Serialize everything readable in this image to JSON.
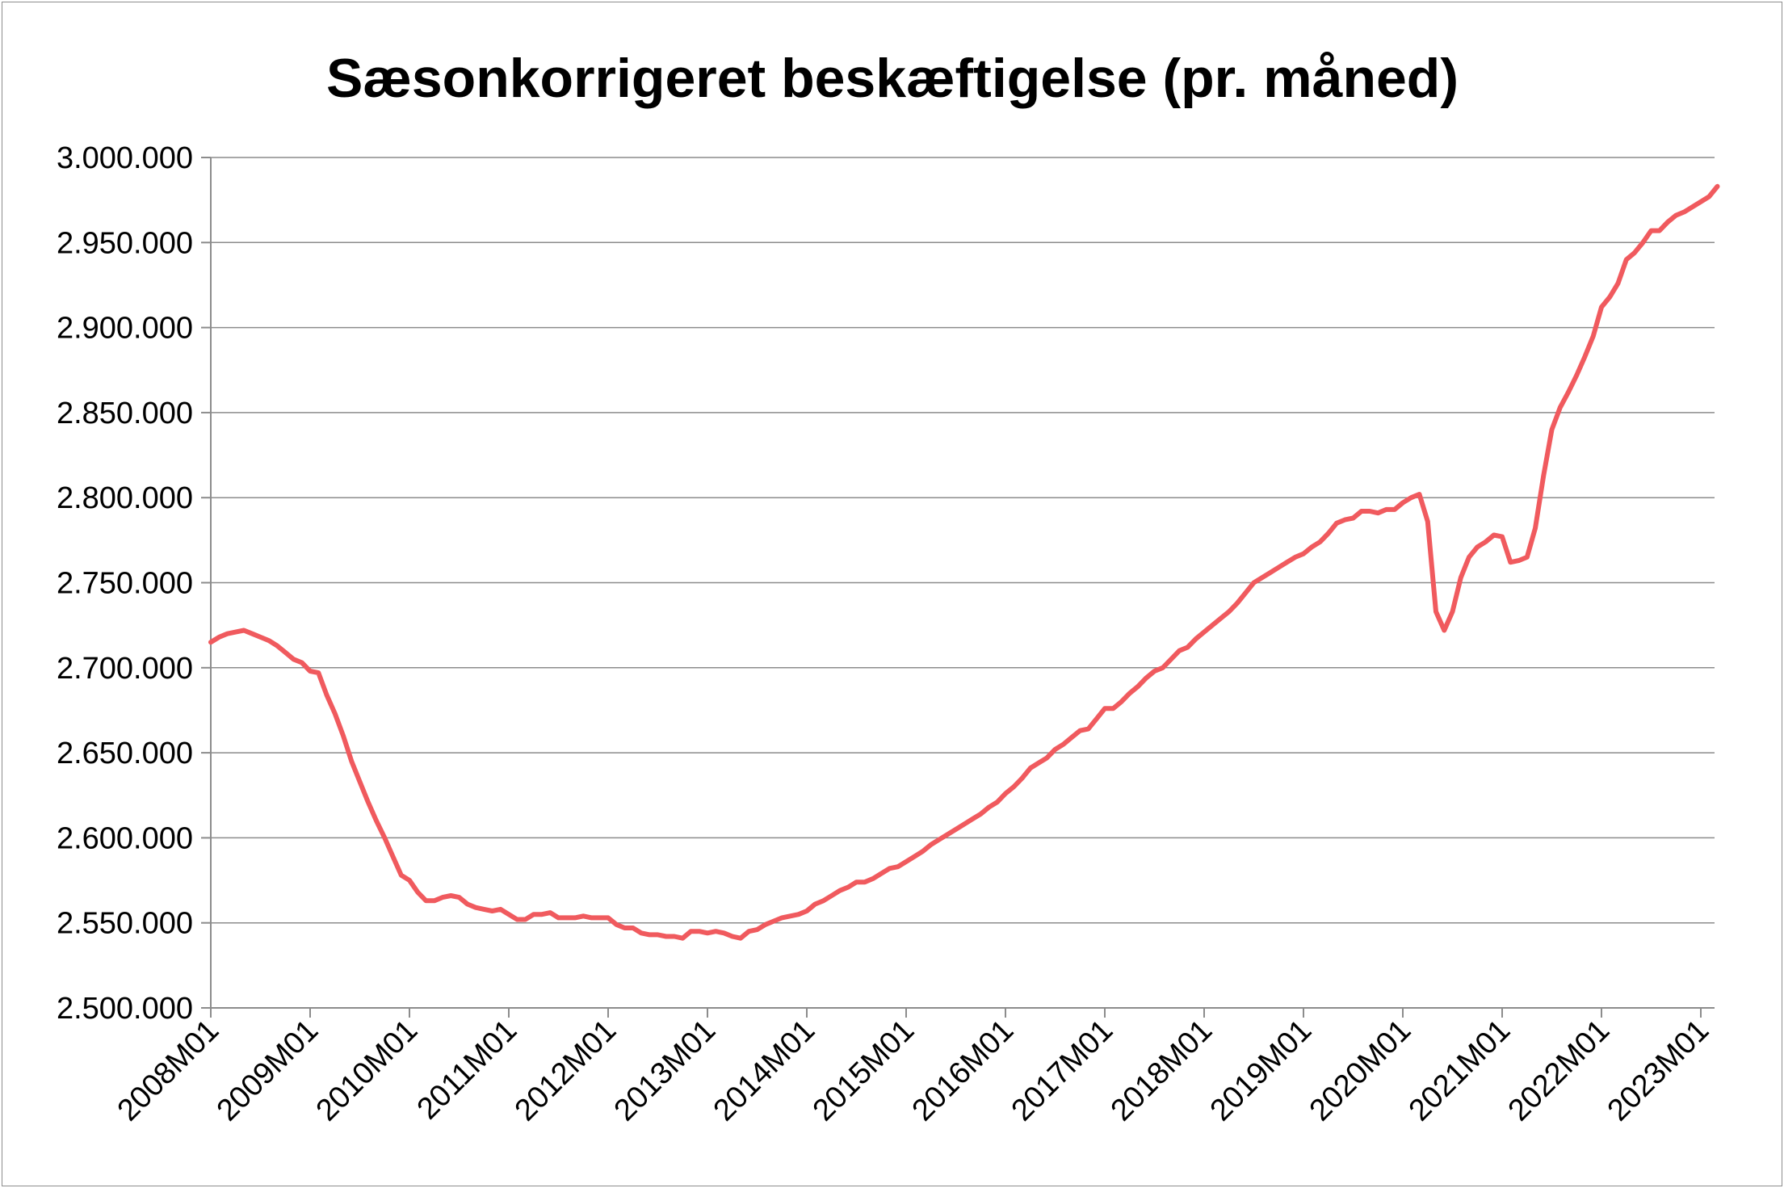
{
  "chart_data": {
    "type": "line",
    "title": "Sæsonkorrigeret beskæftigelse (pr. måned)",
    "xlabel": "",
    "ylabel": "",
    "ylim": [
      2500000,
      3000000
    ],
    "y_ticks": [
      2500000,
      2550000,
      2600000,
      2650000,
      2700000,
      2750000,
      2800000,
      2850000,
      2900000,
      2950000,
      3000000
    ],
    "y_tick_labels": [
      "2.500.000",
      "2.550.000",
      "2.600.000",
      "2.650.000",
      "2.700.000",
      "2.750.000",
      "2.800.000",
      "2.850.000",
      "2.900.000",
      "2.950.000",
      "3.000.000"
    ],
    "x_tick_labels": [
      "2008M01",
      "2009M01",
      "2010M01",
      "2011M01",
      "2012M01",
      "2013M01",
      "2014M01",
      "2015M01",
      "2016M01",
      "2017M01",
      "2018M01",
      "2019M01",
      "2020M01",
      "2021M01",
      "2022M01",
      "2023M01"
    ],
    "grid": true,
    "legend": "none",
    "line_color": "#f05a5e",
    "series": [
      {
        "name": "",
        "start": "2008M01",
        "values": [
          2715000,
          2718000,
          2720000,
          2721000,
          2722000,
          2720000,
          2718000,
          2716000,
          2713000,
          2709000,
          2705000,
          2703000,
          2698000,
          2697000,
          2684000,
          2673000,
          2660000,
          2645000,
          2633000,
          2621000,
          2610000,
          2600000,
          2589000,
          2578000,
          2575000,
          2568000,
          2563000,
          2563000,
          2565000,
          2566000,
          2565000,
          2561000,
          2559000,
          2558000,
          2557000,
          2558000,
          2555000,
          2552000,
          2552000,
          2555000,
          2555000,
          2556000,
          2553000,
          2553000,
          2553000,
          2554000,
          2553000,
          2553000,
          2553000,
          2549000,
          2547000,
          2547000,
          2544000,
          2543000,
          2543000,
          2542000,
          2542000,
          2541000,
          2545000,
          2545000,
          2544000,
          2545000,
          2544000,
          2542000,
          2541000,
          2545000,
          2546000,
          2549000,
          2551000,
          2553000,
          2554000,
          2555000,
          2557000,
          2561000,
          2563000,
          2566000,
          2569000,
          2571000,
          2574000,
          2574000,
          2576000,
          2579000,
          2582000,
          2583000,
          2586000,
          2589000,
          2592000,
          2596000,
          2599000,
          2602000,
          2605000,
          2608000,
          2611000,
          2614000,
          2618000,
          2621000,
          2626000,
          2630000,
          2635000,
          2641000,
          2644000,
          2647000,
          2652000,
          2655000,
          2659000,
          2663000,
          2664000,
          2670000,
          2676000,
          2676000,
          2680000,
          2685000,
          2689000,
          2694000,
          2698000,
          2700000,
          2705000,
          2710000,
          2712000,
          2717000,
          2721000,
          2725000,
          2729000,
          2733000,
          2738000,
          2744000,
          2750000,
          2753000,
          2756000,
          2759000,
          2762000,
          2765000,
          2767000,
          2771000,
          2774000,
          2779000,
          2785000,
          2787000,
          2788000,
          2792000,
          2792000,
          2791000,
          2793000,
          2793000,
          2797000,
          2800000,
          2802000,
          2786000,
          2733000,
          2722000,
          2733000,
          2753000,
          2765000,
          2771000,
          2774000,
          2778000,
          2777000,
          2762000,
          2763000,
          2765000,
          2782000,
          2813000,
          2840000,
          2853000,
          2862000,
          2872000,
          2883000,
          2895000,
          2912000,
          2918000,
          2926000,
          2940000,
          2944000,
          2950000,
          2957000,
          2957000,
          2962000,
          2966000,
          2968000,
          2971000,
          2974000,
          2977000,
          2983000
        ]
      }
    ]
  }
}
